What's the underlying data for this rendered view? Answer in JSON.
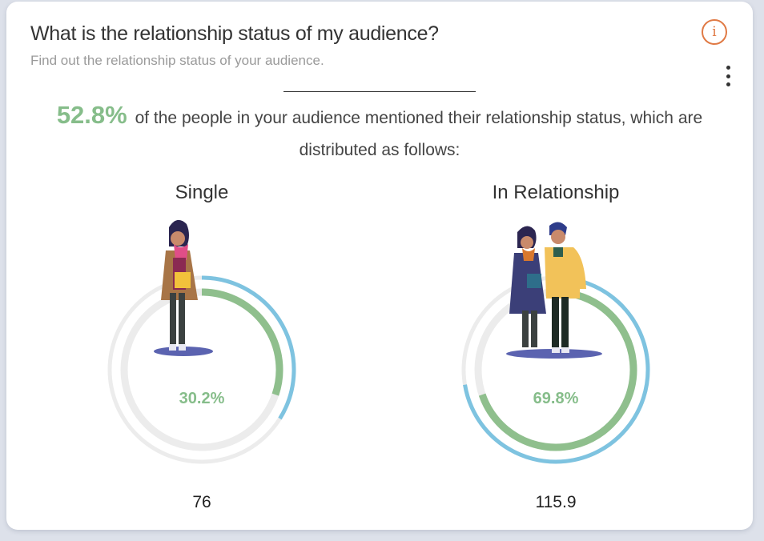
{
  "header": {
    "title": "What is the relationship status of my audience?",
    "subtitle": "Find out the relationship status of your audience.",
    "info_label": "i"
  },
  "summary": {
    "percent": "52.8%",
    "text": "of the people in your audience mentioned their relationship status, which are distributed as follows:"
  },
  "colors": {
    "green": "#8fbf8d",
    "blue": "#7ec3e0",
    "track": "#ececec",
    "accent": "#e07a45"
  },
  "chart_data": {
    "type": "pie",
    "categories": [
      "Single",
      "In Relationship"
    ],
    "values": [
      30.2,
      69.8
    ],
    "value_labels": [
      "30.2%",
      "69.8%"
    ],
    "counts": [
      "76",
      "115.9"
    ],
    "outer_ring_values": [
      33.9,
      72.4
    ]
  }
}
